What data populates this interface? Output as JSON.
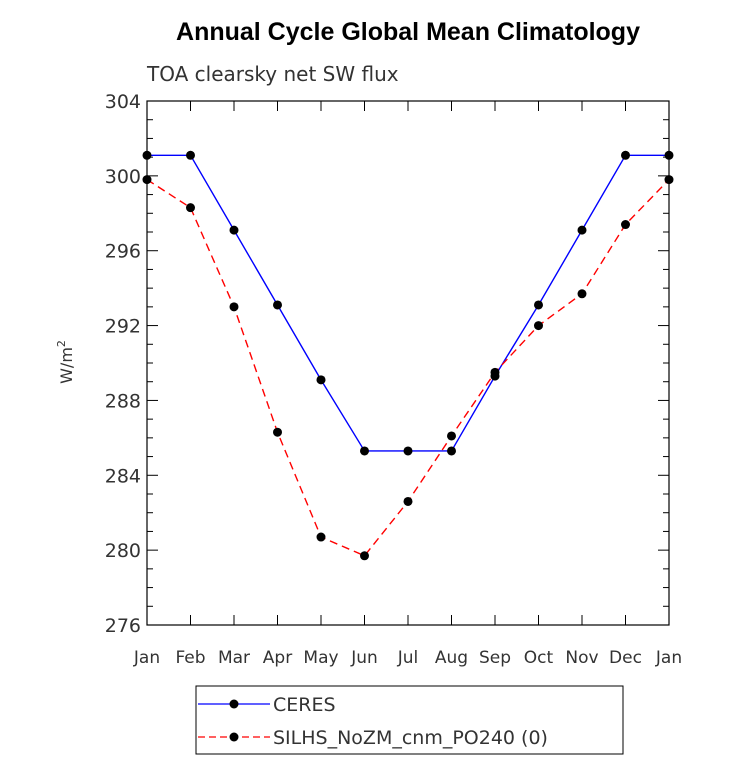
{
  "chart_data": {
    "type": "line",
    "title": "Annual Cycle Global Mean Climatology",
    "subtitle": "TOA clearsky net SW flux",
    "ylabel": "W/m",
    "ylabel_sup": "2",
    "xlabel": "",
    "categories": [
      "Jan",
      "Feb",
      "Mar",
      "Apr",
      "May",
      "Jun",
      "Jul",
      "Aug",
      "Sep",
      "Oct",
      "Nov",
      "Dec",
      "Jan"
    ],
    "ylim": [
      276,
      304
    ],
    "yticks": [
      276,
      280,
      284,
      288,
      292,
      296,
      300,
      304
    ],
    "grid": false,
    "legend_position": "bottom",
    "series": [
      {
        "name": "CERES",
        "color": "#0000ff",
        "line_style": "solid",
        "marker": "filled-circle",
        "values": [
          301.1,
          301.1,
          297.1,
          293.1,
          289.1,
          285.3,
          285.3,
          285.3,
          289.3,
          293.1,
          297.1,
          301.1,
          301.1
        ]
      },
      {
        "name": "SILHS_NoZM_cnm_PO240 (0)",
        "color": "#ff0000",
        "line_style": "dashed",
        "marker": "filled-circle",
        "values": [
          299.8,
          298.3,
          293.0,
          286.3,
          280.7,
          279.7,
          282.6,
          286.1,
          289.5,
          292.0,
          293.7,
          297.4,
          299.8
        ]
      }
    ]
  }
}
